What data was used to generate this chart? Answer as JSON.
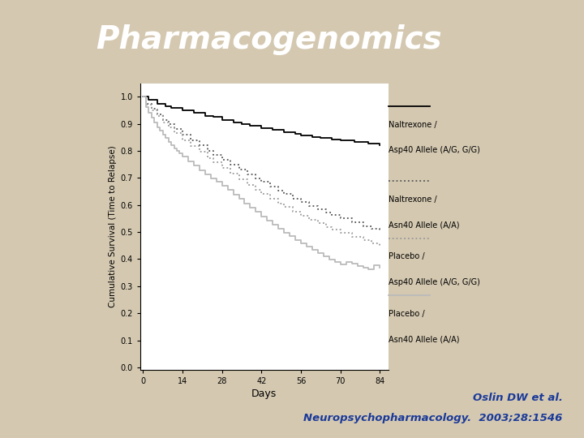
{
  "title": "Pharmacogenomics",
  "title_bg_color": "#1c3b8a",
  "title_text_color": "#ffffff",
  "bg_color_left": "#c8b490",
  "bg_color_main": "#d4c8b0",
  "plot_bg_color": "#ffffff",
  "xlabel": "Days",
  "ylabel": "Cumulative Survival (Time to Relapse)",
  "xticks": [
    0,
    14,
    28,
    42,
    56,
    70,
    84
  ],
  "ytick_labels": [
    "0.0",
    "0.1",
    "0.2",
    "0.3",
    "0.4",
    "0.5",
    "0.6",
    "0.7",
    "0.8",
    "0.9",
    "1.0"
  ],
  "ytick_vals": [
    0.0,
    0.1,
    0.2,
    0.3,
    0.4,
    0.5,
    0.6,
    0.7,
    0.8,
    0.9,
    1.0
  ],
  "ylim": [
    -0.01,
    1.05
  ],
  "xlim": [
    -1,
    87
  ],
  "citation_bg": "#f5c890",
  "citation_text1": "Oslin DW et al.",
  "citation_text2": "Neuropsychopharmacology.  2003;28:1546",
  "citation_color": "#1a3a9a",
  "legend_items": [
    {
      "label1": "Naltrexone /",
      "label2": "Asp40 Allele (A/G, G/G)",
      "color": "#000000",
      "ls": "-"
    },
    {
      "label1": "Naltrexone /",
      "label2": "Asn40 Allele (A/A)",
      "color": "#666666",
      "ls": ":"
    },
    {
      "label1": "Placebo /",
      "label2": "Asp40 Allele (A/G, G/G)",
      "color": "#aaaaaa",
      "ls": ":"
    },
    {
      "label1": "Placebo /",
      "label2": "Asn40 Allele (A/A)",
      "color": "#cccccc",
      "ls": "-"
    }
  ],
  "c1_pts": [
    [
      0,
      1.0
    ],
    [
      2,
      0.99
    ],
    [
      5,
      0.975
    ],
    [
      8,
      0.965
    ],
    [
      10,
      0.96
    ],
    [
      14,
      0.95
    ],
    [
      18,
      0.94
    ],
    [
      22,
      0.93
    ],
    [
      25,
      0.925
    ],
    [
      28,
      0.915
    ],
    [
      32,
      0.905
    ],
    [
      35,
      0.898
    ],
    [
      38,
      0.892
    ],
    [
      42,
      0.885
    ],
    [
      46,
      0.878
    ],
    [
      50,
      0.87
    ],
    [
      54,
      0.862
    ],
    [
      56,
      0.858
    ],
    [
      60,
      0.852
    ],
    [
      63,
      0.847
    ],
    [
      67,
      0.842
    ],
    [
      70,
      0.838
    ],
    [
      75,
      0.832
    ],
    [
      80,
      0.826
    ],
    [
      84,
      0.82
    ]
  ],
  "c2_pts": [
    [
      0,
      1.0
    ],
    [
      1,
      0.975
    ],
    [
      3,
      0.955
    ],
    [
      5,
      0.935
    ],
    [
      7,
      0.915
    ],
    [
      9,
      0.898
    ],
    [
      11,
      0.882
    ],
    [
      14,
      0.86
    ],
    [
      17,
      0.84
    ],
    [
      20,
      0.82
    ],
    [
      23,
      0.8
    ],
    [
      25,
      0.786
    ],
    [
      28,
      0.768
    ],
    [
      31,
      0.75
    ],
    [
      34,
      0.732
    ],
    [
      37,
      0.714
    ],
    [
      40,
      0.698
    ],
    [
      42,
      0.685
    ],
    [
      45,
      0.668
    ],
    [
      48,
      0.652
    ],
    [
      50,
      0.64
    ],
    [
      53,
      0.624
    ],
    [
      56,
      0.61
    ],
    [
      59,
      0.597
    ],
    [
      62,
      0.584
    ],
    [
      65,
      0.572
    ],
    [
      67,
      0.563
    ],
    [
      70,
      0.55
    ],
    [
      74,
      0.536
    ],
    [
      78,
      0.522
    ],
    [
      81,
      0.512
    ],
    [
      84,
      0.503
    ]
  ],
  "c3_pts": [
    [
      0,
      1.0
    ],
    [
      1,
      0.972
    ],
    [
      3,
      0.95
    ],
    [
      5,
      0.928
    ],
    [
      7,
      0.906
    ],
    [
      9,
      0.886
    ],
    [
      11,
      0.866
    ],
    [
      14,
      0.84
    ],
    [
      17,
      0.818
    ],
    [
      20,
      0.796
    ],
    [
      23,
      0.774
    ],
    [
      25,
      0.758
    ],
    [
      28,
      0.736
    ],
    [
      31,
      0.715
    ],
    [
      34,
      0.694
    ],
    [
      37,
      0.674
    ],
    [
      40,
      0.655
    ],
    [
      42,
      0.64
    ],
    [
      45,
      0.622
    ],
    [
      48,
      0.605
    ],
    [
      50,
      0.592
    ],
    [
      53,
      0.575
    ],
    [
      56,
      0.56
    ],
    [
      59,
      0.546
    ],
    [
      62,
      0.532
    ],
    [
      65,
      0.519
    ],
    [
      67,
      0.51
    ],
    [
      70,
      0.498
    ],
    [
      74,
      0.483
    ],
    [
      78,
      0.469
    ],
    [
      81,
      0.458
    ],
    [
      84,
      0.448
    ]
  ],
  "c4_pts": [
    [
      0,
      1.0
    ],
    [
      1,
      0.962
    ],
    [
      2,
      0.942
    ],
    [
      3,
      0.922
    ],
    [
      4,
      0.905
    ],
    [
      5,
      0.888
    ],
    [
      6,
      0.874
    ],
    [
      7,
      0.86
    ],
    [
      8,
      0.847
    ],
    [
      9,
      0.834
    ],
    [
      10,
      0.822
    ],
    [
      11,
      0.81
    ],
    [
      12,
      0.8
    ],
    [
      13,
      0.79
    ],
    [
      14,
      0.78
    ],
    [
      16,
      0.762
    ],
    [
      18,
      0.745
    ],
    [
      20,
      0.728
    ],
    [
      22,
      0.713
    ],
    [
      24,
      0.699
    ],
    [
      26,
      0.685
    ],
    [
      28,
      0.67
    ],
    [
      30,
      0.655
    ],
    [
      32,
      0.638
    ],
    [
      34,
      0.622
    ],
    [
      36,
      0.606
    ],
    [
      38,
      0.59
    ],
    [
      40,
      0.575
    ],
    [
      42,
      0.558
    ],
    [
      44,
      0.542
    ],
    [
      46,
      0.526
    ],
    [
      48,
      0.511
    ],
    [
      50,
      0.497
    ],
    [
      52,
      0.484
    ],
    [
      54,
      0.471
    ],
    [
      56,
      0.458
    ],
    [
      58,
      0.446
    ],
    [
      60,
      0.433
    ],
    [
      62,
      0.421
    ],
    [
      64,
      0.41
    ],
    [
      66,
      0.399
    ],
    [
      68,
      0.389
    ],
    [
      70,
      0.38
    ],
    [
      72,
      0.39
    ],
    [
      74,
      0.382
    ],
    [
      76,
      0.374
    ],
    [
      78,
      0.368
    ],
    [
      80,
      0.362
    ],
    [
      82,
      0.376
    ],
    [
      84,
      0.37
    ]
  ]
}
